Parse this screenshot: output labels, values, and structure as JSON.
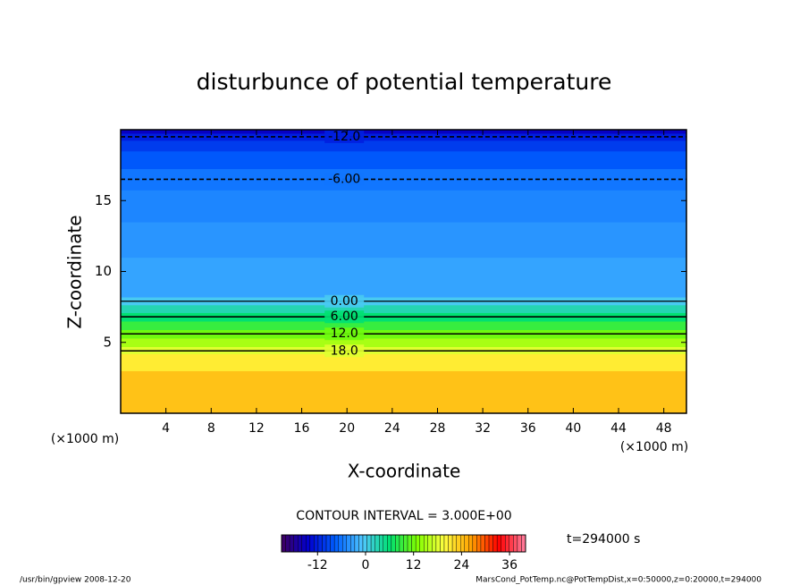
{
  "chart_data": {
    "type": "contour",
    "title": "disturbunce of potential temperature",
    "x_label": "X-coordinate",
    "y_label": "Z-coordinate",
    "x_unit": "(×1000 m)",
    "y_unit": "(×1000 m)",
    "xlim": [
      0,
      50
    ],
    "xticks": [
      4,
      8,
      12,
      16,
      20,
      24,
      28,
      32,
      36,
      40,
      44,
      48
    ],
    "ylim": [
      0,
      20
    ],
    "yticks": [
      5,
      10,
      15
    ],
    "profile": {
      "z": [
        0,
        2,
        4,
        4.4,
        5,
        5.6,
        6.2,
        6.8,
        7.4,
        7.9,
        8.5,
        10,
        12,
        15,
        16.5,
        18,
        19,
        19.5,
        20
      ],
      "values": [
        24,
        24,
        21,
        18,
        15,
        12,
        9,
        6,
        3,
        0,
        -3,
        -3,
        -4,
        -5,
        -6,
        -8,
        -10,
        -12,
        -15
      ]
    },
    "contours": [
      {
        "value": -12,
        "label": "-12.0",
        "z": 19.5
      },
      {
        "value": -6,
        "label": "-6.00",
        "z": 16.5
      },
      {
        "value": 0,
        "label": "0.00",
        "z": 7.9
      },
      {
        "value": 6,
        "label": "6.00",
        "z": 6.8
      },
      {
        "value": 12,
        "label": "12.0",
        "z": 5.6
      },
      {
        "value": 18,
        "label": "18.0",
        "z": 4.4
      }
    ],
    "contour_interval_text": "CONTOUR INTERVAL = 3.000E+00",
    "clim": [
      -21,
      40
    ],
    "cticks": [
      -12,
      0,
      12,
      24,
      36
    ],
    "colormap": [
      "#400060",
      "#0000d0",
      "#0060ff",
      "#50c8ff",
      "#00e070",
      "#80ff00",
      "#ffff40",
      "#ffa000",
      "#ff0000",
      "#ff80a0"
    ],
    "time_text": "t=294000 s",
    "footer_left": "/usr/bin/gpview   2008-12-20",
    "footer_right": "MarsCond_PotTemp.nc@PotTempDist,x=0:50000,z=0:20000,t=294000"
  }
}
